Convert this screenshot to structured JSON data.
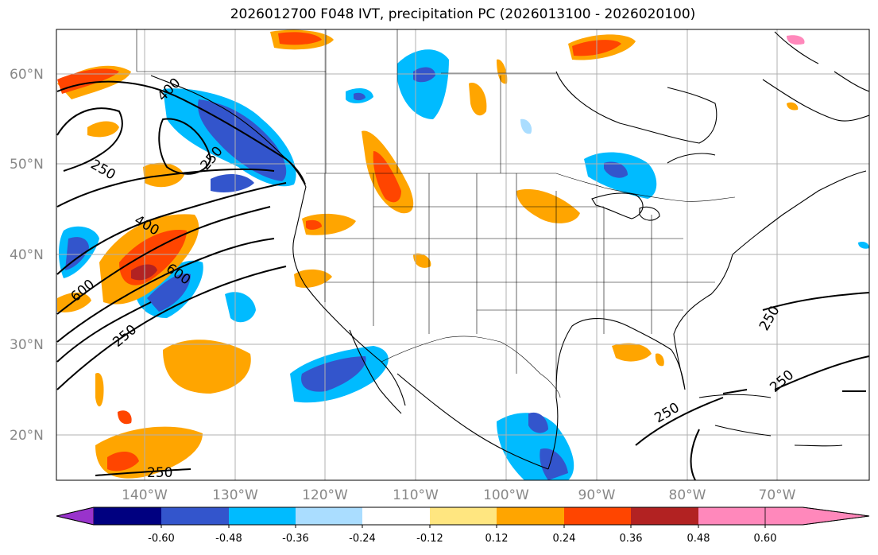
{
  "title": "2026012700 F048 IVT, precipitation PC (2026013100 - 2026020100)",
  "latitude_labels": [
    "60°N",
    "50°N",
    "40°N",
    "30°N",
    "20°N"
  ],
  "longitude_labels": [
    "140°W",
    "130°W",
    "120°W",
    "110°W",
    "100°W",
    "90°W",
    "80°W",
    "70°W"
  ],
  "contour_labels": [
    "400",
    "250",
    "250",
    "400",
    "600",
    "600",
    "250",
    "250",
    "250",
    "250",
    "250"
  ],
  "colorbar": {
    "ticks": [
      "-0.60",
      "-0.48",
      "-0.36",
      "-0.24",
      "-0.12",
      "0.12",
      "0.24",
      "0.36",
      "0.48",
      "0.60"
    ],
    "colors": [
      "#9933cc",
      "#000080",
      "#3355cc",
      "#00bbff",
      "#aaddff",
      "#ffffff",
      "#ffe680",
      "#ffa500",
      "#ff4500",
      "#b22222",
      "#ff88bb"
    ]
  },
  "colors": {
    "coast": "#000000",
    "grid": "#b0b0b0",
    "contour": "#000000"
  }
}
